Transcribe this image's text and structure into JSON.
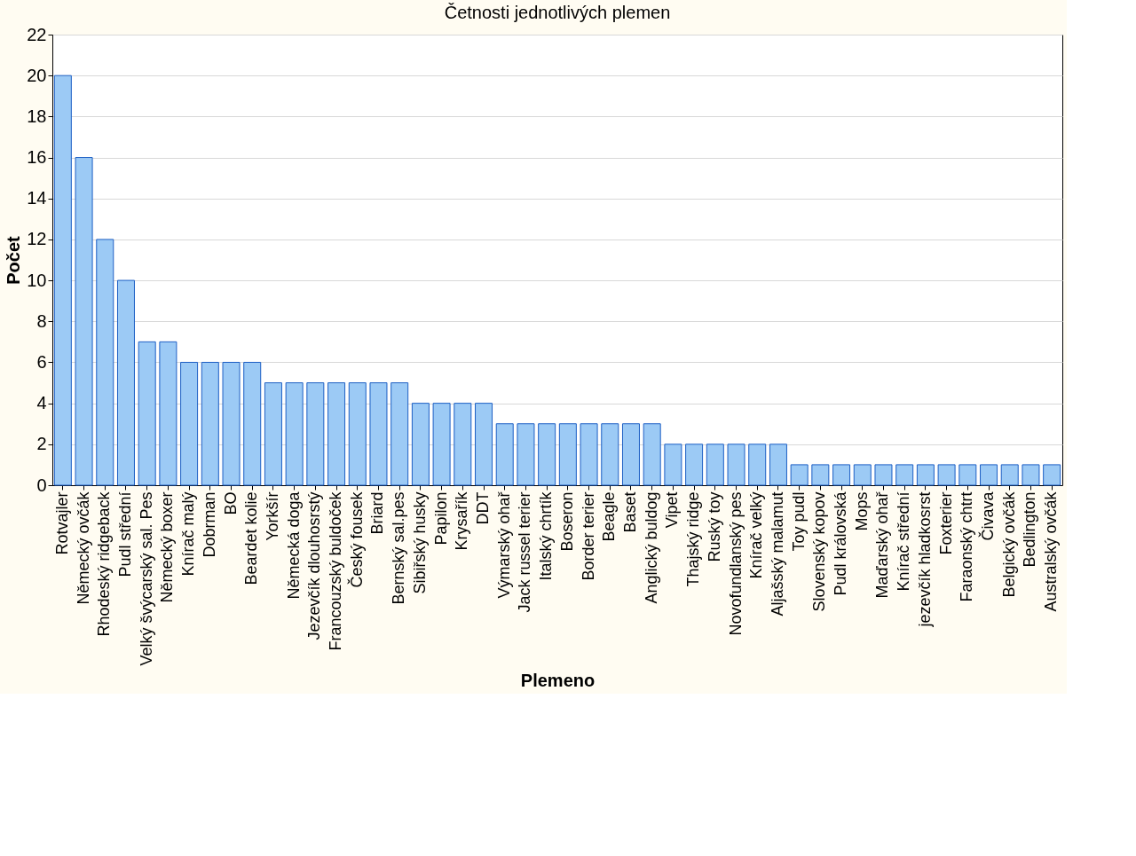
{
  "chart_data": {
    "type": "bar",
    "title": "Četnosti jednotlivých plemen",
    "xlabel": "Plemeno",
    "ylabel": "Počet",
    "categories": [
      "Rotvajler",
      "Německý ovčák",
      "Rhodeský ridgeback",
      "Pudl střední",
      "Velký švýcarský sal. Pes",
      "Německý boxer",
      "Knírač malý",
      "Dobrman",
      "BO",
      "Beardet kolie",
      "Yorkšír",
      "Německá doga",
      "Jezevčík dlouhosrstý",
      "Francouzský buldoček",
      "Český fousek",
      "Briard",
      "Bernský sal.pes",
      "Sibiřský husky",
      "Papilon",
      "Krysařík",
      "DDT",
      "Výmarský ohař",
      "Jack russel terier",
      "Italský chrtík",
      "Boseron",
      "Border terier",
      "Beagle",
      "Baset",
      "Anglický buldog",
      "Vipet",
      "Thajský ridge",
      "Ruský toy",
      "Novofundlanský pes",
      "Knírač velký",
      "Aljašský malamut",
      "Toy pudl",
      "Slovenský kopov",
      "Pudl královská",
      "Mops",
      "Maďarský ohař",
      "Knírač střední",
      "jezevčík hladkosrst",
      "Foxterier",
      "Faraonský chtrt",
      "Čivava",
      "Belgický ovčák",
      "Bedlington",
      "Australský ovčák"
    ],
    "values": [
      20,
      16,
      12,
      10,
      7,
      7,
      6,
      6,
      6,
      6,
      5,
      5,
      5,
      5,
      5,
      5,
      5,
      4,
      4,
      4,
      4,
      3,
      3,
      3,
      3,
      3,
      3,
      3,
      3,
      2,
      2,
      2,
      2,
      2,
      2,
      1,
      1,
      1,
      1,
      1,
      1,
      1,
      1,
      1,
      1,
      1,
      1,
      1
    ],
    "color": "#9ccaf5",
    "ylim": [
      0,
      22
    ],
    "yticks": [
      0,
      2,
      4,
      6,
      8,
      10,
      12,
      14,
      16,
      18,
      20,
      22
    ],
    "grid": "y"
  }
}
